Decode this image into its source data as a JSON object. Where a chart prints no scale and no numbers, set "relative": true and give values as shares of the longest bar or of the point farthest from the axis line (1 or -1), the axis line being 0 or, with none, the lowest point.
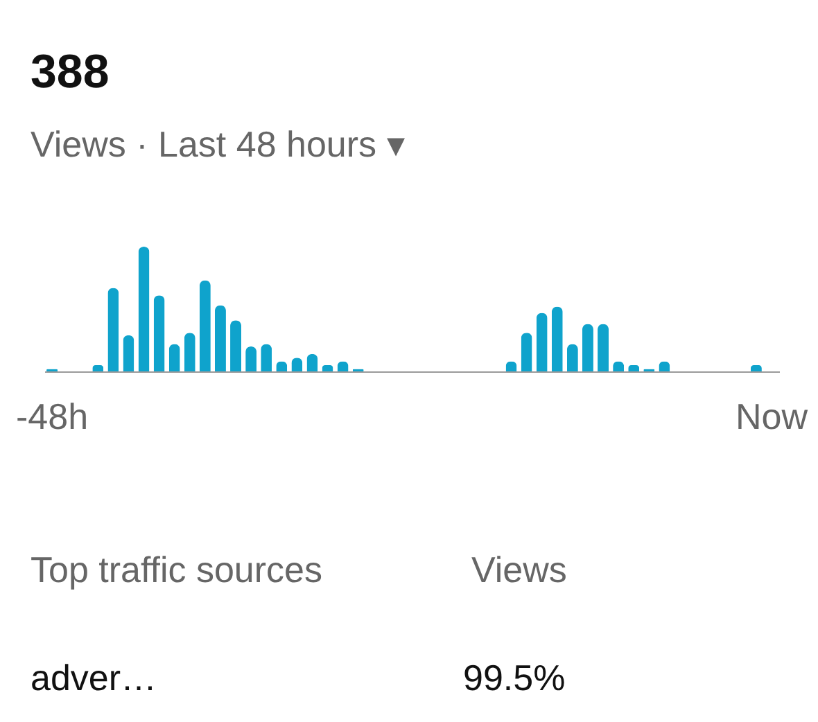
{
  "chart_data": {
    "type": "bar",
    "title": "388",
    "subtitle": "Views · Last 48 hours ▾",
    "relative": true,
    "categories": [
      "-48h",
      null,
      null,
      null,
      null,
      null,
      null,
      null,
      null,
      null,
      null,
      null,
      null,
      null,
      null,
      null,
      null,
      null,
      null,
      null,
      null,
      null,
      null,
      null,
      null,
      null,
      null,
      null,
      null,
      null,
      null,
      null,
      null,
      null,
      null,
      null,
      null,
      null,
      null,
      null,
      null,
      null,
      null,
      null,
      null,
      null,
      null,
      "Now"
    ],
    "values": [
      0.02,
      0,
      0,
      0.05,
      0.67,
      0.29,
      1,
      0.61,
      0.22,
      0.31,
      0.73,
      0.53,
      0.41,
      0.2,
      0.22,
      0.08,
      0.11,
      0.14,
      0.05,
      0.08,
      0.02,
      0,
      0,
      0,
      0,
      0,
      0,
      0,
      0,
      0,
      0.08,
      0.31,
      0.47,
      0.52,
      0.22,
      0.38,
      0.38,
      0.08,
      0.05,
      0.02,
      0.08,
      0,
      0,
      0,
      0,
      0,
      0.05,
      0
    ],
    "color": "#0fa3cc",
    "grid": false,
    "annotations": [
      "Top traffic sources",
      "Views",
      "adver…",
      "99.5%"
    ]
  }
}
